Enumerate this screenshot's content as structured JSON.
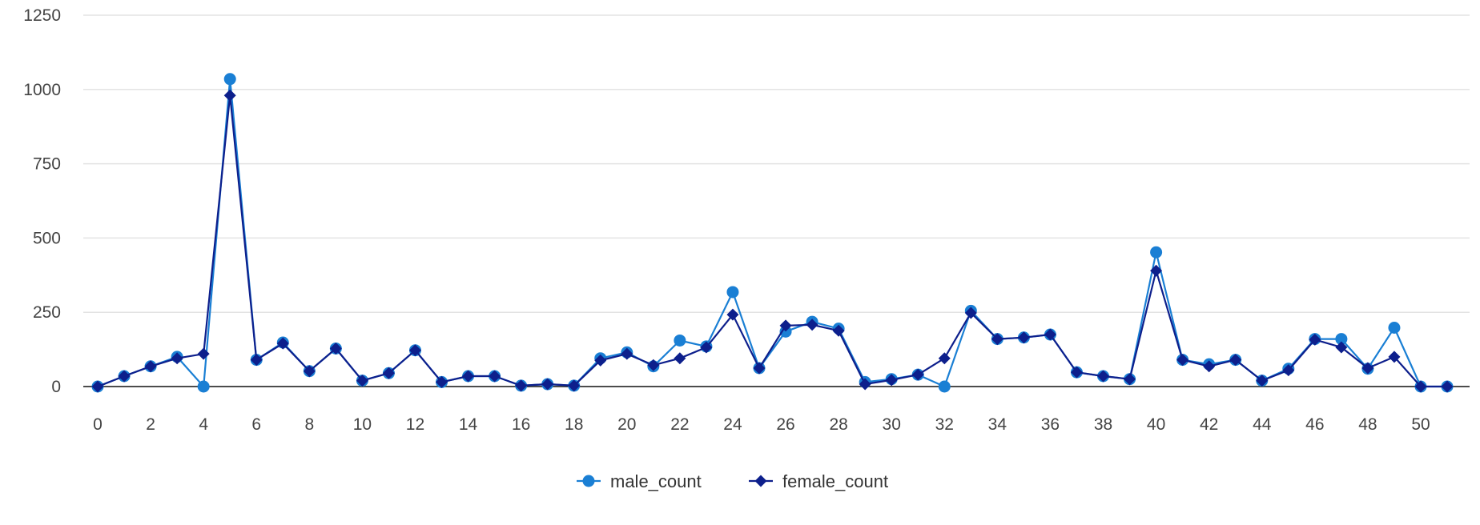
{
  "chart_data": {
    "type": "line",
    "x": [
      0,
      1,
      2,
      3,
      4,
      5,
      6,
      7,
      8,
      9,
      10,
      11,
      12,
      13,
      14,
      15,
      16,
      17,
      18,
      19,
      20,
      21,
      22,
      23,
      24,
      25,
      26,
      27,
      28,
      29,
      30,
      31,
      32,
      33,
      34,
      35,
      36,
      37,
      38,
      39,
      40,
      41,
      42,
      43,
      44,
      45,
      46,
      47,
      48,
      49,
      50,
      51
    ],
    "x_tick_labels": [
      "0",
      "2",
      "4",
      "6",
      "8",
      "10",
      "12",
      "14",
      "16",
      "18",
      "20",
      "22",
      "24",
      "26",
      "28",
      "30",
      "32",
      "34",
      "36",
      "38",
      "40",
      "42",
      "44",
      "46",
      "48",
      "50"
    ],
    "y_tick_labels": [
      "0",
      "250",
      "500",
      "750",
      "1000",
      "1250"
    ],
    "ylim": [
      0,
      1250
    ],
    "grid": true,
    "legend_position": "bottom-center",
    "series": [
      {
        "name": "male_count",
        "color": "#1a7fd4",
        "marker": "circle",
        "values": [
          0,
          35,
          68,
          100,
          0,
          1035,
          90,
          148,
          52,
          128,
          20,
          45,
          122,
          15,
          35,
          35,
          3,
          8,
          3,
          95,
          115,
          68,
          155,
          135,
          318,
          62,
          185,
          218,
          195,
          15,
          25,
          40,
          0,
          255,
          160,
          165,
          175,
          48,
          35,
          25,
          452,
          90,
          75,
          90,
          20,
          60,
          160,
          160,
          60,
          198,
          0,
          0
        ]
      },
      {
        "name": "female_count",
        "color": "#0d1f8c",
        "marker": "diamond",
        "values": [
          0,
          35,
          68,
          95,
          110,
          980,
          90,
          145,
          52,
          128,
          20,
          45,
          122,
          15,
          35,
          35,
          3,
          8,
          3,
          88,
          110,
          72,
          95,
          132,
          242,
          62,
          205,
          208,
          188,
          8,
          22,
          40,
          95,
          248,
          160,
          165,
          175,
          48,
          35,
          25,
          390,
          90,
          68,
          90,
          20,
          55,
          158,
          132,
          62,
          100,
          0,
          0
        ]
      }
    ]
  }
}
